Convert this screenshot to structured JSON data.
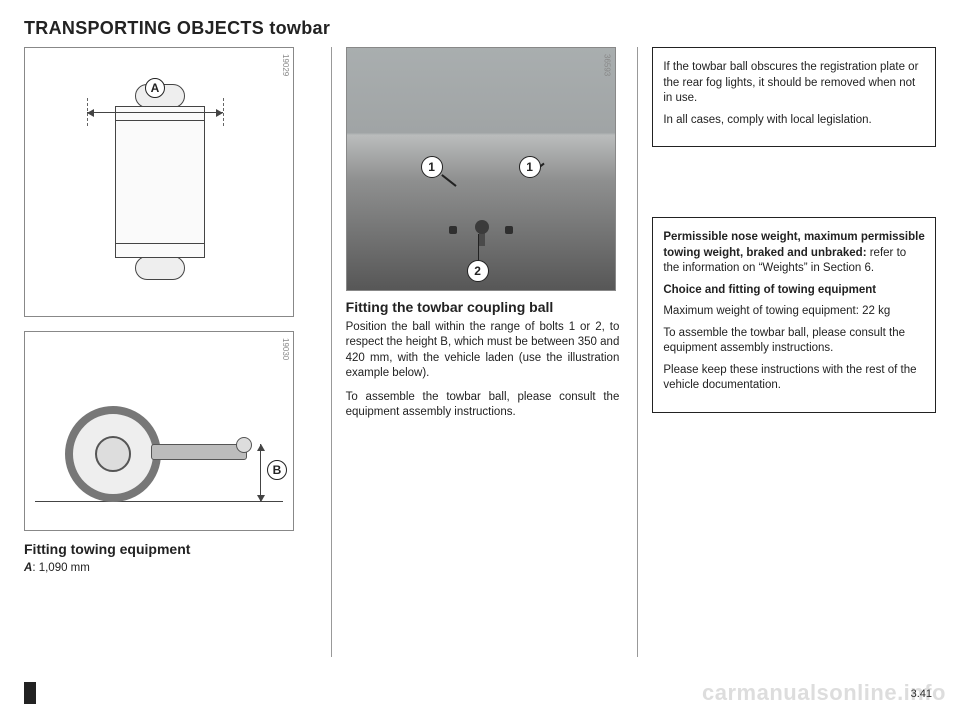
{
  "page": {
    "title": "TRANSPORTING OBJECTS towbar",
    "number": "3.41",
    "watermark": "carmanualsonline.info"
  },
  "fig1": {
    "img_ref": "19029",
    "label": "A"
  },
  "fig2": {
    "img_ref": "19030",
    "label": "B"
  },
  "photo": {
    "img_ref": "36593",
    "callout1": "1",
    "callout1b": "1",
    "callout2": "2"
  },
  "col1": {
    "subhead": "Fitting towing equipment",
    "spec_label": "A",
    "spec_value": ": 1,090 mm"
  },
  "col2": {
    "subhead": "Fitting the towbar coupling ball",
    "para1": "Position the ball within the range of bolts 1 or 2, to respect the height B, which must be between 350 and 420 mm, with the vehicle laden (use the illustration example below).",
    "para2": "To assemble the towbar ball, please consult the equipment assembly instructions."
  },
  "box_top": {
    "para1": "If the towbar ball obscures the registration plate or the rear fog lights, it should be removed when not in use.",
    "para2": "In all cases, comply with local legislation."
  },
  "box_bottom": {
    "lead_bold": "Permissible nose weight, maximum permissible towing weight, braked and unbraked:",
    "lead_rest": " refer to the information on “Weights” in  Section 6.",
    "sub": "Choice and fitting of towing equipment",
    "p1": "Maximum weight of towing equipment: 22 kg",
    "p2": "To assemble the towbar ball, please consult the equipment assembly instructions.",
    "p3": "Please keep these instructions with the rest of the vehicle documentation."
  }
}
